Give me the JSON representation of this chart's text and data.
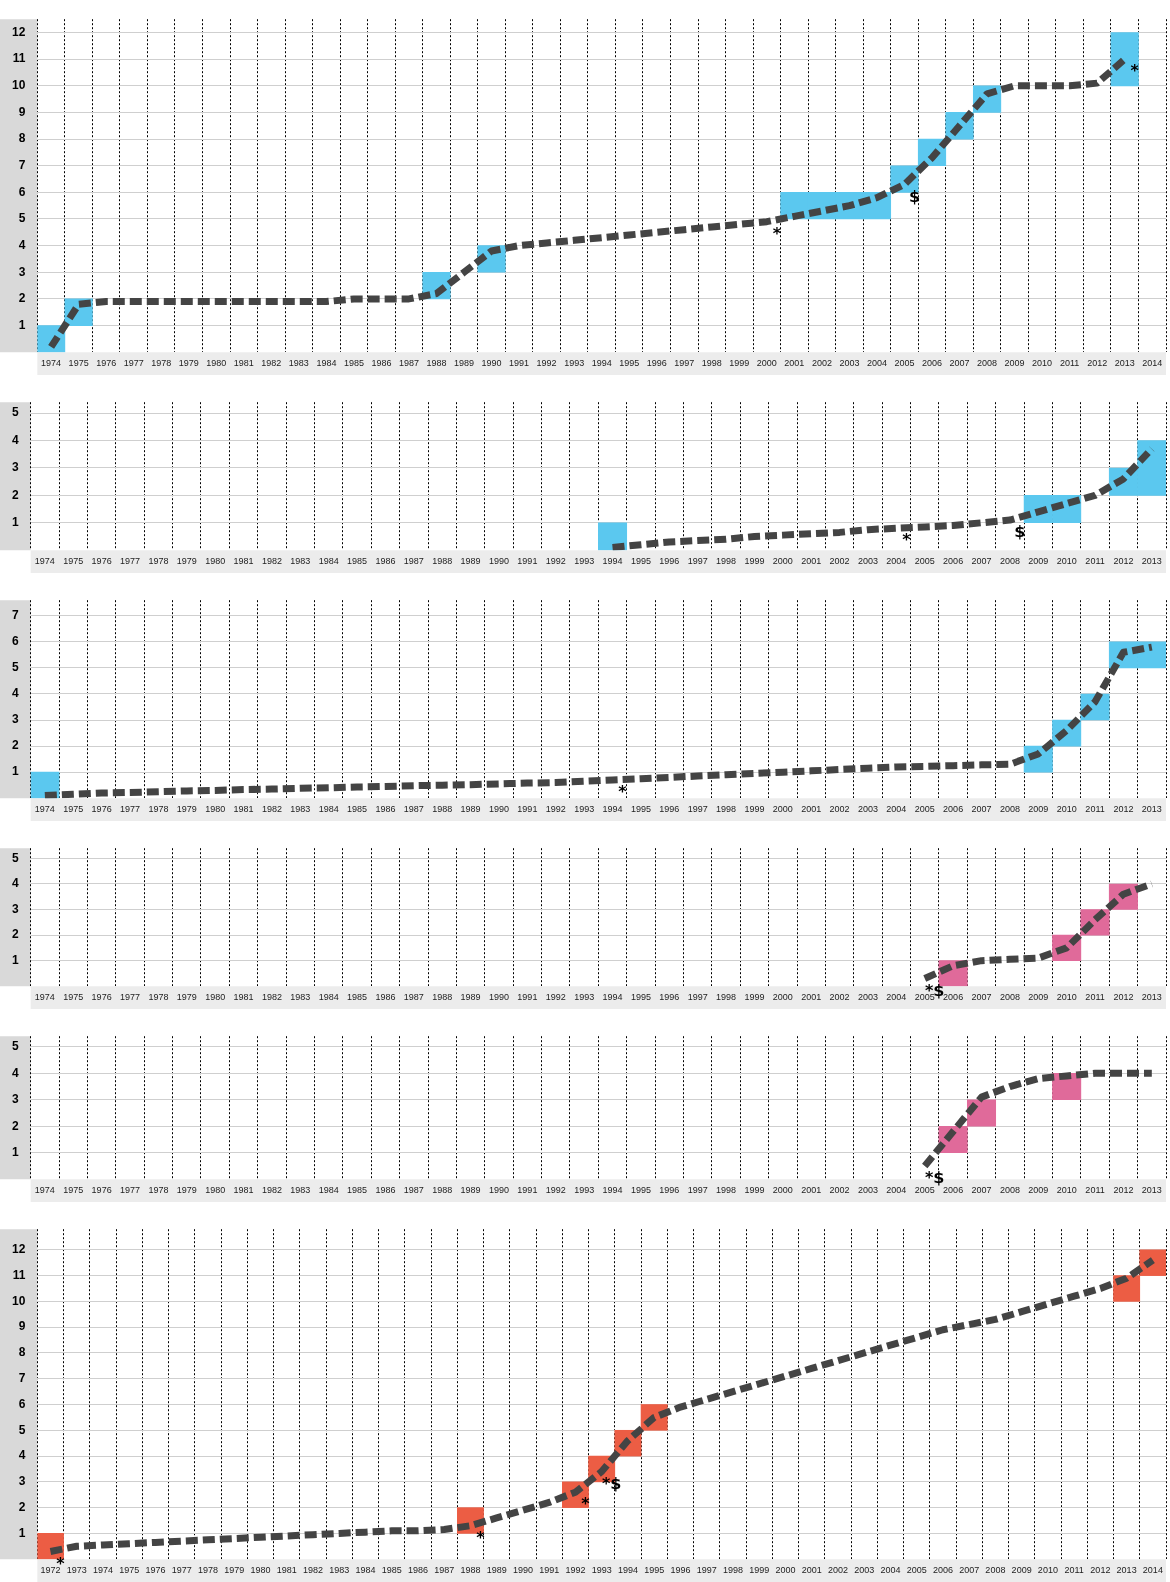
{
  "chart_data": [
    {
      "type": "bar",
      "categories": [
        "1974",
        "1975",
        "1976",
        "1977",
        "1978",
        "1979",
        "1980",
        "1981",
        "1982",
        "1983",
        "1984",
        "1985",
        "1986",
        "1987",
        "1988",
        "1989",
        "1990",
        "1991",
        "1992",
        "1993",
        "1994",
        "1995",
        "1996",
        "1997",
        "1998",
        "1999",
        "2000",
        "2001",
        "2002",
        "2003",
        "2004",
        "2005",
        "2006",
        "2007",
        "2008",
        "2009",
        "2010",
        "2011",
        "2012",
        "2013",
        "2014"
      ],
      "series": [
        {
          "color": "#5bc8ef",
          "base": [
            0,
            1,
            null,
            null,
            null,
            null,
            null,
            null,
            null,
            null,
            null,
            null,
            null,
            null,
            2,
            null,
            3,
            null,
            null,
            null,
            null,
            null,
            null,
            null,
            null,
            null,
            null,
            5,
            5,
            5,
            5,
            6,
            7,
            8,
            9,
            null,
            null,
            null,
            null,
            10,
            null
          ],
          "values": [
            1,
            1,
            null,
            null,
            null,
            null,
            null,
            null,
            null,
            null,
            null,
            null,
            null,
            null,
            1,
            null,
            1,
            null,
            null,
            null,
            null,
            null,
            null,
            null,
            null,
            null,
            null,
            1,
            1,
            1,
            1,
            1,
            1,
            1,
            1,
            null,
            null,
            null,
            null,
            2,
            null
          ]
        },
        {
          "type": "line",
          "color": "#444444",
          "line_style": "dashed",
          "marker": "none",
          "values": [
            0.2,
            1.8,
            1.9,
            1.9,
            1.9,
            1.9,
            1.9,
            1.9,
            1.9,
            1.9,
            1.9,
            2.0,
            2.0,
            2.0,
            2.2,
            3.0,
            3.8,
            4.0,
            4.1,
            4.2,
            4.3,
            4.4,
            4.5,
            4.6,
            4.7,
            4.8,
            4.9,
            5.1,
            5.3,
            5.5,
            5.8,
            6.3,
            7.3,
            8.5,
            9.7,
            10.0,
            10.0,
            10.0,
            10.1,
            11.0,
            null
          ]
        }
      ],
      "ylim": [
        0,
        12.5
      ],
      "yticks": [
        1,
        2,
        3,
        4,
        5,
        6,
        7,
        8,
        9,
        10,
        11,
        12
      ],
      "grid": true,
      "legend": false,
      "annotations": [
        {
          "text": "*",
          "x": "2000",
          "y": 4.9
        },
        {
          "text": "$",
          "x": "2005",
          "y": 6.3
        },
        {
          "text": "*",
          "x": "2013",
          "y": 11.0
        }
      ]
    },
    {
      "type": "bar",
      "categories": [
        "1974",
        "1975",
        "1976",
        "1977",
        "1978",
        "1979",
        "1980",
        "1981",
        "1982",
        "1983",
        "1984",
        "1985",
        "1986",
        "1987",
        "1988",
        "1989",
        "1990",
        "1991",
        "1992",
        "1993",
        "1994",
        "1995",
        "1996",
        "1997",
        "1998",
        "1999",
        "2000",
        "2001",
        "2002",
        "2003",
        "2004",
        "2005",
        "2006",
        "2007",
        "2008",
        "2009",
        "2010",
        "2011",
        "2012",
        "2013"
      ],
      "series": [
        {
          "color": "#5bc8ef",
          "base": [
            null,
            null,
            null,
            null,
            null,
            null,
            null,
            null,
            null,
            null,
            null,
            null,
            null,
            null,
            null,
            null,
            null,
            null,
            null,
            null,
            0,
            null,
            null,
            null,
            null,
            null,
            null,
            null,
            null,
            null,
            null,
            null,
            null,
            null,
            null,
            1,
            1,
            null,
            2,
            2
          ],
          "values": [
            null,
            null,
            null,
            null,
            null,
            null,
            null,
            null,
            null,
            null,
            null,
            null,
            null,
            null,
            null,
            null,
            null,
            null,
            null,
            null,
            1,
            null,
            null,
            null,
            null,
            null,
            null,
            null,
            null,
            null,
            null,
            null,
            null,
            null,
            null,
            1,
            1,
            null,
            1,
            2
          ]
        },
        {
          "type": "line",
          "color": "#444444",
          "line_style": "dashed",
          "marker": "none",
          "values": [
            null,
            null,
            null,
            null,
            null,
            null,
            null,
            null,
            null,
            null,
            null,
            null,
            null,
            null,
            null,
            null,
            null,
            null,
            null,
            null,
            0.1,
            0.2,
            0.3,
            0.35,
            0.4,
            0.5,
            0.55,
            0.6,
            0.65,
            0.75,
            0.8,
            0.85,
            0.9,
            1.0,
            1.1,
            1.4,
            1.7,
            2.0,
            2.6,
            3.7
          ]
        }
      ],
      "ylim": [
        0,
        5.4
      ],
      "yticks": [
        1,
        2,
        3,
        4,
        5
      ],
      "grid": true,
      "legend": false,
      "annotations": [
        {
          "text": "*",
          "x": "2004",
          "y": 0.8
        },
        {
          "text": "$",
          "x": "2008",
          "y": 1.1
        }
      ]
    },
    {
      "type": "bar",
      "categories": [
        "1974",
        "1975",
        "1976",
        "1977",
        "1978",
        "1979",
        "1980",
        "1981",
        "1982",
        "1983",
        "1984",
        "1985",
        "1986",
        "1987",
        "1988",
        "1989",
        "1990",
        "1991",
        "1992",
        "1993",
        "1994",
        "1995",
        "1996",
        "1997",
        "1998",
        "1999",
        "2000",
        "2001",
        "2002",
        "2003",
        "2004",
        "2005",
        "2006",
        "2007",
        "2008",
        "2009",
        "2010",
        "2011",
        "2012",
        "2013"
      ],
      "series": [
        {
          "color": "#5bc8ef",
          "base": [
            0,
            null,
            null,
            null,
            null,
            null,
            null,
            null,
            null,
            null,
            null,
            null,
            null,
            null,
            null,
            null,
            null,
            null,
            null,
            null,
            null,
            null,
            null,
            null,
            null,
            null,
            null,
            null,
            null,
            null,
            null,
            null,
            null,
            null,
            null,
            1,
            2,
            3,
            5,
            5
          ],
          "values": [
            1,
            null,
            null,
            null,
            null,
            null,
            null,
            null,
            null,
            null,
            null,
            null,
            null,
            null,
            null,
            null,
            null,
            null,
            null,
            null,
            null,
            null,
            null,
            null,
            null,
            null,
            null,
            null,
            null,
            null,
            null,
            null,
            null,
            null,
            null,
            1,
            1,
            1,
            1,
            1
          ]
        },
        {
          "type": "line",
          "color": "#444444",
          "line_style": "dashed",
          "marker": "none",
          "values": [
            0.1,
            0.15,
            0.2,
            0.22,
            0.25,
            0.28,
            0.3,
            0.33,
            0.35,
            0.38,
            0.4,
            0.43,
            0.45,
            0.48,
            0.5,
            0.52,
            0.55,
            0.58,
            0.6,
            0.65,
            0.7,
            0.75,
            0.8,
            0.85,
            0.9,
            0.95,
            1.0,
            1.05,
            1.1,
            1.15,
            1.2,
            1.22,
            1.25,
            1.28,
            1.3,
            1.7,
            2.6,
            3.7,
            5.6,
            5.8
          ]
        }
      ],
      "ylim": [
        0,
        7.6
      ],
      "yticks": [
        1,
        2,
        3,
        4,
        5,
        6,
        7
      ],
      "grid": true,
      "legend": false,
      "annotations": [
        {
          "text": "*",
          "x": "1994",
          "y": 0.7
        }
      ]
    },
    {
      "type": "bar",
      "categories": [
        "1974",
        "1975",
        "1976",
        "1977",
        "1978",
        "1979",
        "1980",
        "1981",
        "1982",
        "1983",
        "1984",
        "1985",
        "1986",
        "1987",
        "1988",
        "1989",
        "1990",
        "1991",
        "1992",
        "1993",
        "1994",
        "1995",
        "1996",
        "1997",
        "1998",
        "1999",
        "2000",
        "2001",
        "2002",
        "2003",
        "2004",
        "2005",
        "2006",
        "2007",
        "2008",
        "2009",
        "2010",
        "2011",
        "2012",
        "2013"
      ],
      "series": [
        {
          "color": "#e06a9a",
          "base": [
            null,
            null,
            null,
            null,
            null,
            null,
            null,
            null,
            null,
            null,
            null,
            null,
            null,
            null,
            null,
            null,
            null,
            null,
            null,
            null,
            null,
            null,
            null,
            null,
            null,
            null,
            null,
            null,
            null,
            null,
            null,
            null,
            0,
            null,
            null,
            null,
            1,
            2,
            3,
            null
          ],
          "values": [
            null,
            null,
            null,
            null,
            null,
            null,
            null,
            null,
            null,
            null,
            null,
            null,
            null,
            null,
            null,
            null,
            null,
            null,
            null,
            null,
            null,
            null,
            null,
            null,
            null,
            null,
            null,
            null,
            null,
            null,
            null,
            null,
            1,
            null,
            null,
            null,
            1,
            1,
            1,
            null
          ]
        },
        {
          "type": "line",
          "color": "#444444",
          "line_style": "dashed",
          "marker": "none",
          "values": [
            null,
            null,
            null,
            null,
            null,
            null,
            null,
            null,
            null,
            null,
            null,
            null,
            null,
            null,
            null,
            null,
            null,
            null,
            null,
            null,
            null,
            null,
            null,
            null,
            null,
            null,
            null,
            null,
            null,
            null,
            null,
            0.3,
            0.8,
            1.0,
            1.05,
            1.1,
            1.5,
            2.6,
            3.6,
            4.0
          ]
        }
      ],
      "ylim": [
        0,
        5.4
      ],
      "yticks": [
        1,
        2,
        3,
        4,
        5
      ],
      "grid": true,
      "legend": false,
      "annotations": [
        {
          "text": "*$",
          "x": "2005",
          "y": 0.3
        }
      ]
    },
    {
      "type": "bar",
      "categories": [
        "1974",
        "1975",
        "1976",
        "1977",
        "1978",
        "1979",
        "1980",
        "1981",
        "1982",
        "1983",
        "1984",
        "1985",
        "1986",
        "1987",
        "1988",
        "1989",
        "1990",
        "1991",
        "1992",
        "1993",
        "1994",
        "1995",
        "1996",
        "1997",
        "1998",
        "1999",
        "2000",
        "2001",
        "2002",
        "2003",
        "2004",
        "2005",
        "2006",
        "2007",
        "2008",
        "2009",
        "2010",
        "2011",
        "2012",
        "2013"
      ],
      "series": [
        {
          "color": "#e06a9a",
          "base": [
            null,
            null,
            null,
            null,
            null,
            null,
            null,
            null,
            null,
            null,
            null,
            null,
            null,
            null,
            null,
            null,
            null,
            null,
            null,
            null,
            null,
            null,
            null,
            null,
            null,
            null,
            null,
            null,
            null,
            null,
            null,
            null,
            1,
            2,
            null,
            null,
            3,
            null,
            null,
            null
          ],
          "values": [
            null,
            null,
            null,
            null,
            null,
            null,
            null,
            null,
            null,
            null,
            null,
            null,
            null,
            null,
            null,
            null,
            null,
            null,
            null,
            null,
            null,
            null,
            null,
            null,
            null,
            null,
            null,
            null,
            null,
            null,
            null,
            null,
            1,
            1,
            null,
            null,
            1,
            null,
            null,
            null
          ]
        },
        {
          "type": "line",
          "color": "#444444",
          "line_style": "dashed",
          "marker": "none",
          "values": [
            null,
            null,
            null,
            null,
            null,
            null,
            null,
            null,
            null,
            null,
            null,
            null,
            null,
            null,
            null,
            null,
            null,
            null,
            null,
            null,
            null,
            null,
            null,
            null,
            null,
            null,
            null,
            null,
            null,
            null,
            null,
            0.5,
            1.8,
            3.1,
            3.5,
            3.8,
            3.9,
            4.0,
            4.0,
            4.0
          ]
        }
      ],
      "ylim": [
        0,
        5.4
      ],
      "yticks": [
        1,
        2,
        3,
        4,
        5
      ],
      "grid": true,
      "legend": false,
      "annotations": [
        {
          "text": "*$",
          "x": "2005",
          "y": 0.5
        }
      ]
    },
    {
      "type": "bar",
      "categories": [
        "1972",
        "1973",
        "1974",
        "1975",
        "1976",
        "1977",
        "1978",
        "1979",
        "1980",
        "1981",
        "1982",
        "1983",
        "1984",
        "1985",
        "1986",
        "1987",
        "1988",
        "1989",
        "1990",
        "1991",
        "1992",
        "1993",
        "1994",
        "1995",
        "1996",
        "1997",
        "1998",
        "1999",
        "2000",
        "2001",
        "2002",
        "2003",
        "2004",
        "2005",
        "2006",
        "2007",
        "2008",
        "2009",
        "2010",
        "2011",
        "2012",
        "2013",
        "2014"
      ],
      "series": [
        {
          "color": "#ec5d44",
          "base": [
            0,
            null,
            null,
            null,
            null,
            null,
            null,
            null,
            null,
            null,
            null,
            null,
            null,
            null,
            null,
            null,
            1,
            null,
            null,
            null,
            2,
            3,
            4,
            5,
            null,
            null,
            null,
            null,
            null,
            null,
            null,
            null,
            null,
            null,
            null,
            null,
            null,
            null,
            null,
            null,
            null,
            10,
            11
          ],
          "values": [
            1,
            null,
            null,
            null,
            null,
            null,
            null,
            null,
            null,
            null,
            null,
            null,
            null,
            null,
            null,
            null,
            1,
            null,
            null,
            null,
            1,
            1,
            1,
            1,
            null,
            null,
            null,
            null,
            null,
            null,
            null,
            null,
            null,
            null,
            null,
            null,
            null,
            null,
            null,
            null,
            null,
            1,
            1
          ]
        },
        {
          "type": "line",
          "color": "#444444",
          "line_style": "dashed",
          "marker": "none",
          "values": [
            0.3,
            0.5,
            0.55,
            0.6,
            0.65,
            0.7,
            0.75,
            0.8,
            0.85,
            0.9,
            0.95,
            1.0,
            1.05,
            1.1,
            1.1,
            1.15,
            1.3,
            1.6,
            1.9,
            2.2,
            2.6,
            3.4,
            4.6,
            5.5,
            5.9,
            6.2,
            6.5,
            6.8,
            7.1,
            7.4,
            7.7,
            8.0,
            8.3,
            8.6,
            8.9,
            9.1,
            9.3,
            9.6,
            9.9,
            10.2,
            10.5,
            10.9,
            11.6
          ]
        }
      ],
      "ylim": [
        0,
        12.8
      ],
      "yticks": [
        1,
        2,
        3,
        4,
        5,
        6,
        7,
        8,
        9,
        10,
        11,
        12
      ],
      "grid": true,
      "legend": false,
      "annotations": [
        {
          "text": "*",
          "x": "1972",
          "y": 0.3
        },
        {
          "text": "*",
          "x": "1988",
          "y": 1.3
        },
        {
          "text": "*",
          "x": "1992",
          "y": 2.6
        },
        {
          "text": "*$",
          "x": "1993",
          "y": 3.4
        }
      ]
    }
  ]
}
